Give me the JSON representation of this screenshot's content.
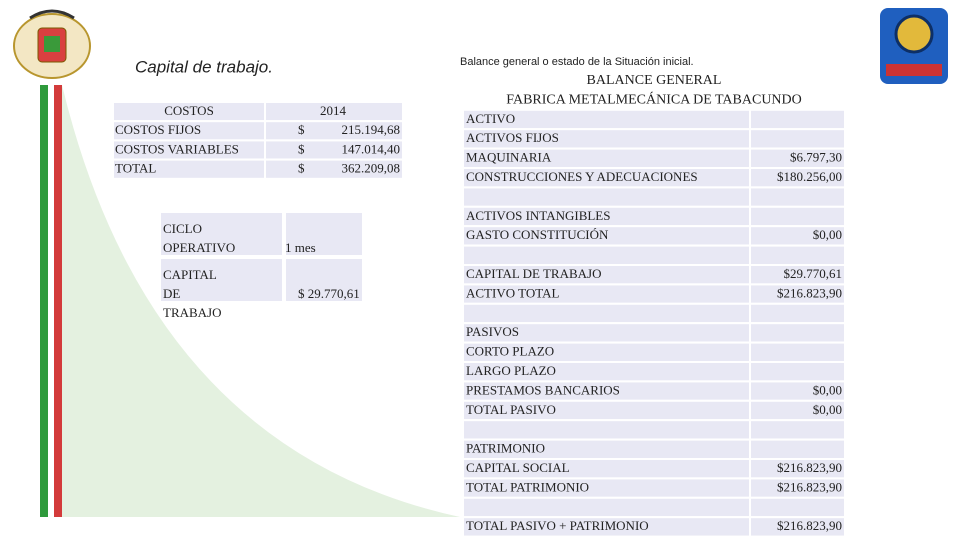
{
  "left": {
    "title": "Capital de trabajo.",
    "costs_table": {
      "header": [
        "COSTOS",
        "2014"
      ],
      "rows": [
        [
          "COSTOS FIJOS",
          "$",
          "215.194,68"
        ],
        [
          "COSTOS VARIABLES",
          "$",
          "147.014,40"
        ],
        [
          "TOTAL",
          "$",
          "362.209,08"
        ]
      ]
    },
    "cycle_table": {
      "rows": [
        [
          "CICLO OPERATIVO",
          "1 mes"
        ],
        [
          "CAPITAL DE TRABAJO",
          "$ 29.770,61"
        ]
      ]
    }
  },
  "right": {
    "title": "Balance general o estado de la Situación inicial.",
    "balance": {
      "header": [
        "BALANCE GENERAL",
        "FABRICA METALMECÁNICA DE TABACUNDO"
      ],
      "groups": [
        [
          {
            "label": "ACTIVO"
          },
          {
            "label": "ACTIVOS FIJOS"
          },
          {
            "label": "MAQUINARIA",
            "value": "$6.797,30"
          },
          {
            "label": "CONSTRUCCIONES Y ADECUACIONES",
            "value": "$180.256,00"
          }
        ],
        [
          {
            "label": "ACTIVOS INTANGIBLES"
          },
          {
            "label": "GASTO CONSTITUCIÓN",
            "value": "$0,00"
          }
        ],
        [
          {
            "label": "CAPITAL DE TRABAJO",
            "value": "$29.770,61"
          },
          {
            "label": "ACTIVO TOTAL",
            "value": "$216.823,90"
          }
        ],
        [
          {
            "label": "PASIVOS"
          },
          {
            "label": "CORTO PLAZO"
          },
          {
            "label": "LARGO PLAZO"
          },
          {
            "label": "PRESTAMOS BANCARIOS",
            "value": "$0,00"
          },
          {
            "label": "TOTAL PASIVO",
            "value": "$0,00"
          }
        ],
        [
          {
            "label": "PATRIMONIO"
          },
          {
            "label": "CAPITAL SOCIAL",
            "value": "$216.823,90"
          },
          {
            "label": "TOTAL PATRIMONIO",
            "value": "$216.823,90"
          }
        ],
        [
          {
            "label": "TOTAL PASIVO + PATRIMONIO",
            "value": "$216.823,90"
          }
        ]
      ]
    }
  }
}
